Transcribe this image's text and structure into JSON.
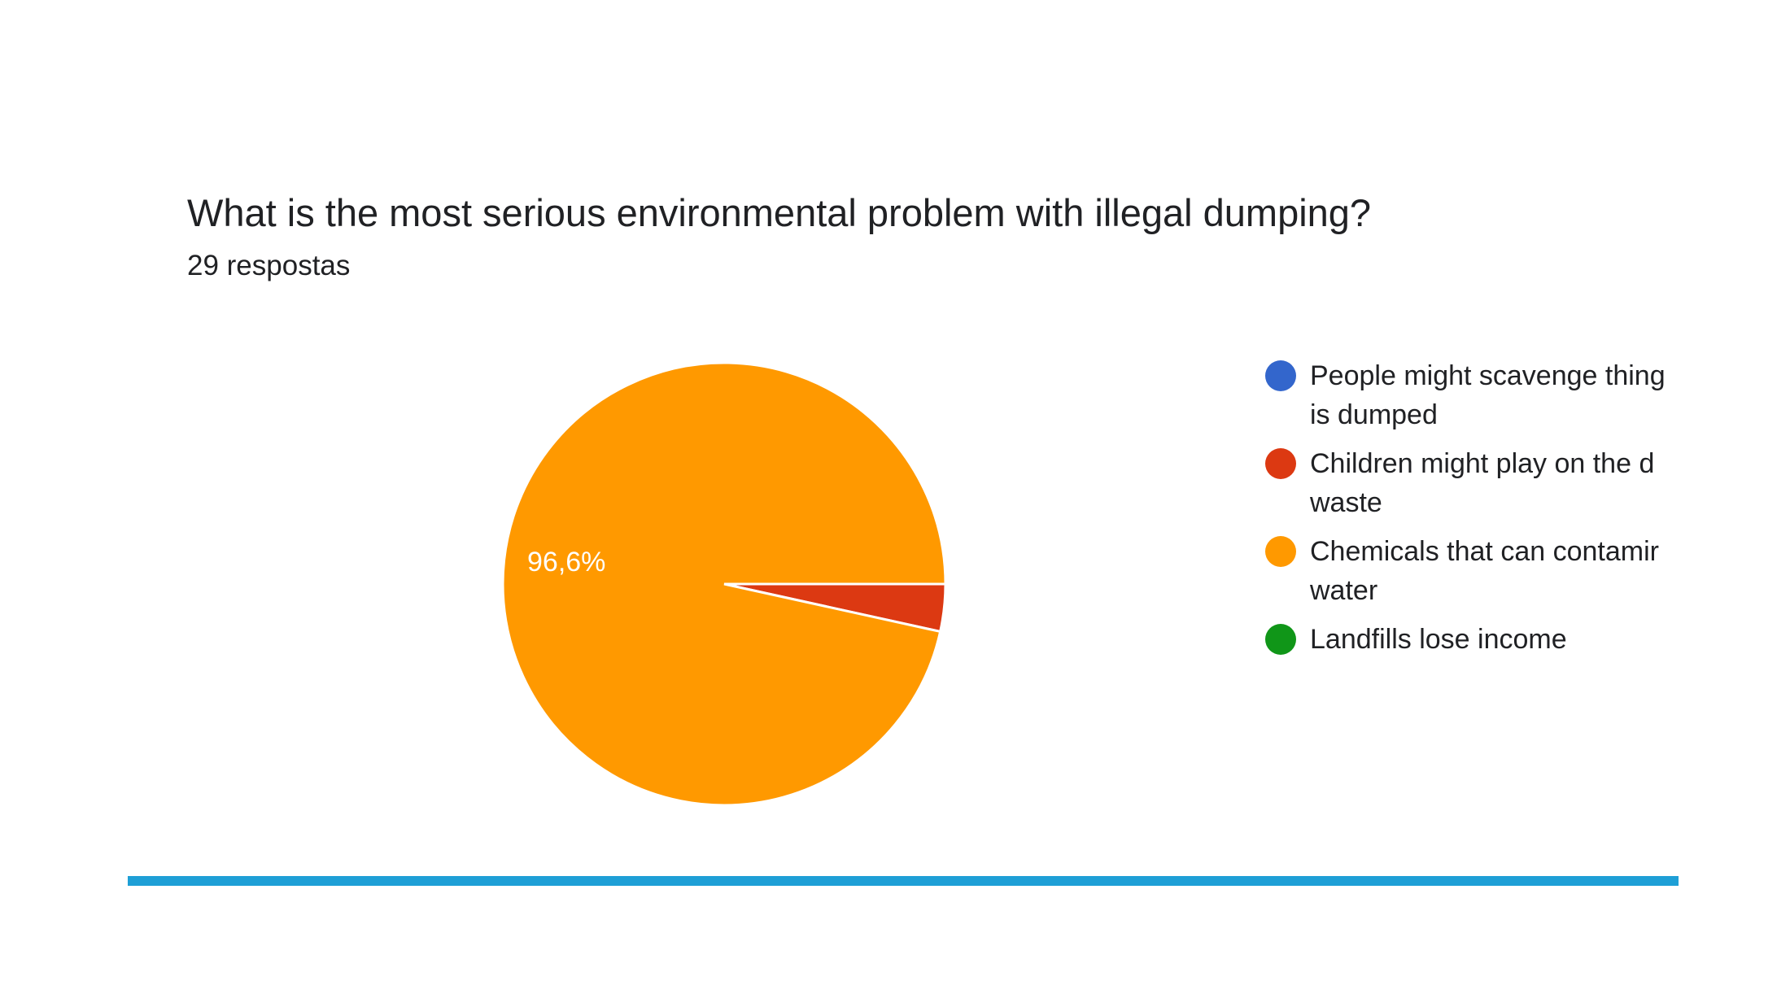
{
  "title": "What is the most serious environmental problem with illegal dumping?",
  "subtitle": "29 respostas",
  "chart_data": {
    "type": "pie",
    "total_responses": 29,
    "slices": [
      {
        "label": "People might scavenge things that is dumped",
        "value": 0,
        "color": "#3366cc"
      },
      {
        "label": "Children might play on the dumped waste",
        "value": 1,
        "percent_label": "",
        "color": "#dc3912"
      },
      {
        "label": "Chemicals that can contaminate water",
        "value": 28,
        "percent_label": "96,6%",
        "color": "#ff9900"
      },
      {
        "label": "Landfills lose income",
        "value": 0,
        "color": "#109618"
      }
    ],
    "legend": {
      "position": "right",
      "items": [
        {
          "lines": [
            "People might scavenge thing",
            "is dumped"
          ],
          "color": "#3366cc"
        },
        {
          "lines": [
            "Children might play on the d",
            "waste"
          ],
          "color": "#dc3912"
        },
        {
          "lines": [
            "Chemicals that can contamir",
            "water"
          ],
          "color": "#ff9900"
        },
        {
          "lines": [
            "Landfills lose income"
          ],
          "color": "#109618"
        }
      ]
    }
  },
  "accent": {
    "bottom_rule_color": "#1e9fd6"
  }
}
